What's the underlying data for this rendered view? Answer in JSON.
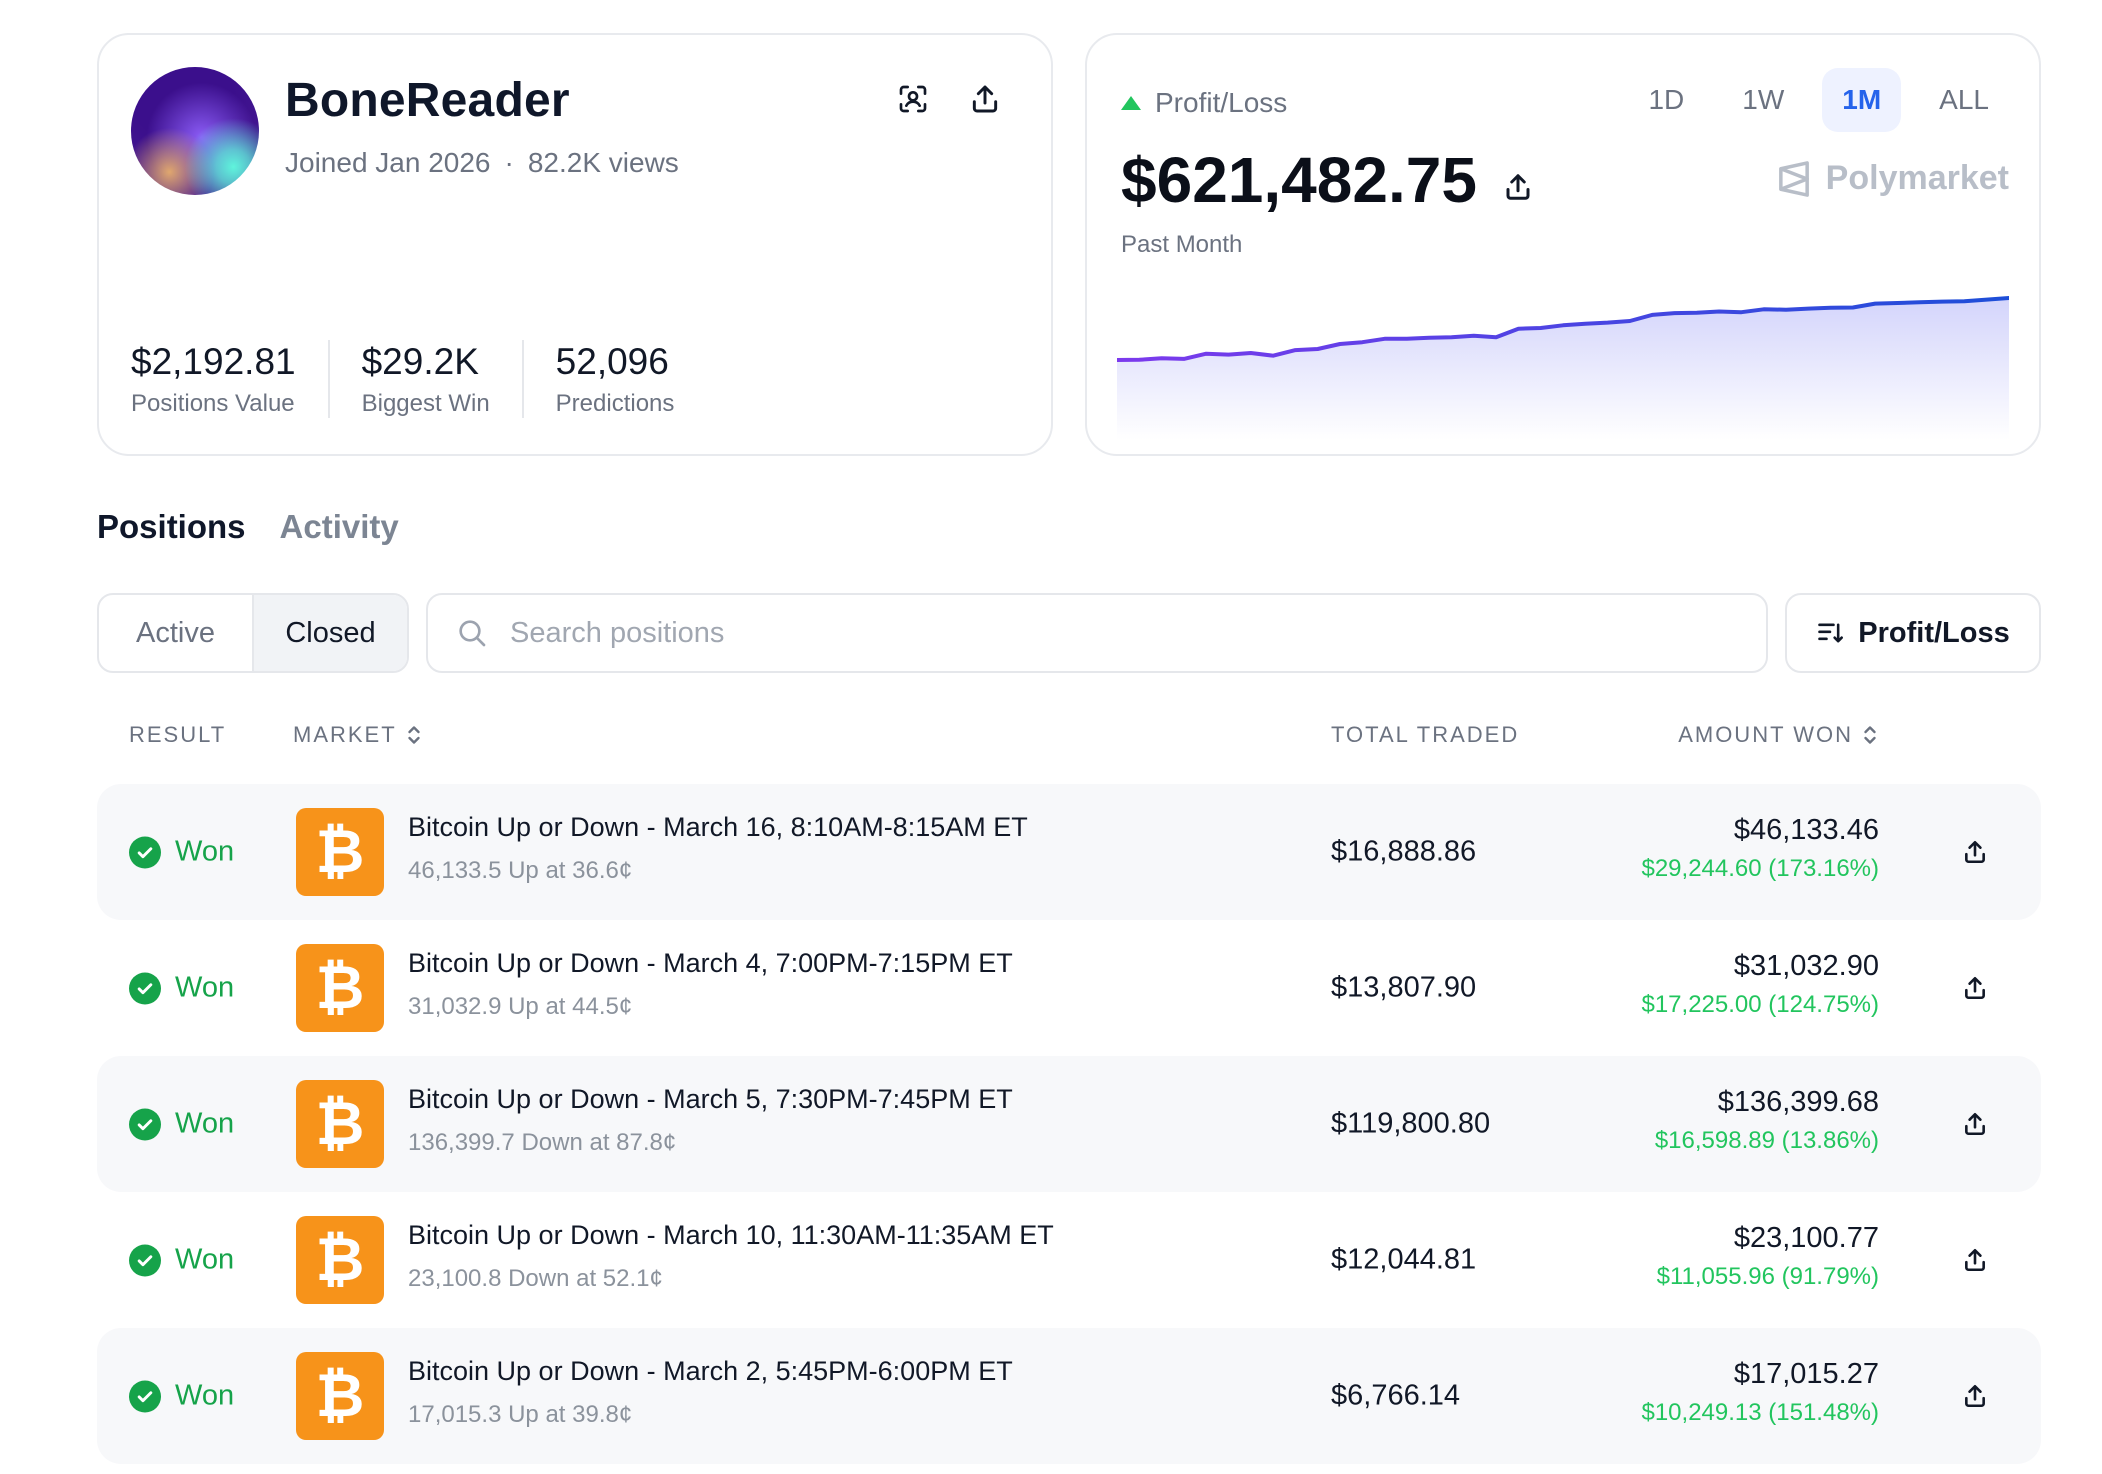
{
  "profile": {
    "username": "BoneReader",
    "joined": "Joined Jan 2026",
    "separator": "·",
    "views": "82.2K views",
    "stats": [
      {
        "value": "$2,192.81",
        "label": "Positions Value"
      },
      {
        "value": "$29.2K",
        "label": "Biggest Win"
      },
      {
        "value": "52,096",
        "label": "Predictions"
      }
    ],
    "icons": {
      "scan": "scan-user-icon",
      "share": "share-icon"
    }
  },
  "pnl": {
    "label": "Profit/Loss",
    "value": "$621,482.75",
    "period_label": "Past Month",
    "brand": "Polymarket",
    "ranges": [
      "1D",
      "1W",
      "1M",
      "ALL"
    ],
    "active_range": "1M",
    "trend_color": "#22c55e",
    "line_gradient": [
      "#7c3aed",
      "#1d4ed8"
    ]
  },
  "chart_data": {
    "type": "area",
    "title": "",
    "xlabel": "",
    "ylabel": "",
    "grid": false,
    "series": [
      {
        "values": [
          0,
          1,
          8,
          5,
          28,
          24,
          31,
          19,
          44,
          49,
          71,
          79,
          94,
          94,
          99,
          101,
          108,
          101,
          139,
          142,
          154,
          161,
          166,
          173,
          200,
          208,
          210,
          215,
          212,
          225,
          223,
          228,
          232,
          233,
          250,
          253,
          256,
          259,
          261,
          268,
          275
        ]
      }
    ]
  },
  "tabs": [
    {
      "label": "Positions",
      "active": true
    },
    {
      "label": "Activity",
      "active": false
    }
  ],
  "filters": {
    "segments": [
      {
        "label": "Active",
        "active": false
      },
      {
        "label": "Closed",
        "active": true
      }
    ],
    "search_placeholder": "Search positions",
    "search_value": "",
    "sort_label": "Profit/Loss"
  },
  "table": {
    "headers": {
      "result": "RESULT",
      "market": "MARKET",
      "total_traded": "TOTAL TRADED",
      "amount_won": "AMOUNT WON"
    },
    "coin_glyph": "₿",
    "coin_color": "#f7931a",
    "rows": [
      {
        "result": "Won",
        "title": "Bitcoin Up or Down - March 16, 8:10AM-8:15AM ET",
        "detail": "46,133.5 Up at 36.6¢",
        "traded": "$16,888.86",
        "won": "$46,133.46",
        "gain": "$29,244.60 (173.16%)"
      },
      {
        "result": "Won",
        "title": "Bitcoin Up or Down - March 4, 7:00PM-7:15PM ET",
        "detail": "31,032.9 Up at 44.5¢",
        "traded": "$13,807.90",
        "won": "$31,032.90",
        "gain": "$17,225.00 (124.75%)"
      },
      {
        "result": "Won",
        "title": "Bitcoin Up or Down - March 5, 7:30PM-7:45PM ET",
        "detail": "136,399.7 Down at 87.8¢",
        "traded": "$119,800.80",
        "won": "$136,399.68",
        "gain": "$16,598.89 (13.86%)"
      },
      {
        "result": "Won",
        "title": "Bitcoin Up or Down - March 10, 11:30AM-11:35AM ET",
        "detail": "23,100.8 Down at 52.1¢",
        "traded": "$12,044.81",
        "won": "$23,100.77",
        "gain": "$11,055.96 (91.79%)"
      },
      {
        "result": "Won",
        "title": "Bitcoin Up or Down - March 2, 5:45PM-6:00PM ET",
        "detail": "17,015.3 Up at 39.8¢",
        "traded": "$6,766.14",
        "won": "$17,015.27",
        "gain": "$10,249.13 (151.48%)"
      }
    ]
  }
}
